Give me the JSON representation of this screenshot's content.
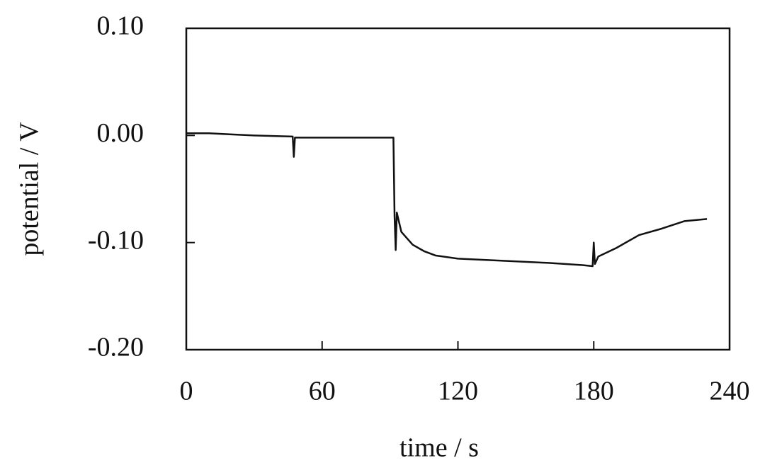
{
  "chart_data": {
    "type": "line",
    "x_label": "time / s",
    "y_label": "potential / V",
    "xlim": [
      0,
      240
    ],
    "xticks": [
      0,
      60,
      120,
      180,
      240
    ],
    "ylim": [
      -0.2,
      0.1
    ],
    "yticks": [
      {
        "value": -0.2,
        "label": "-0.20"
      },
      {
        "value": -0.1,
        "label": "-0.10"
      },
      {
        "value": 0,
        "label": "0.00"
      },
      {
        "value": 0.1,
        "label": "0.10"
      }
    ],
    "series": [
      {
        "color": "#111111",
        "x": [
          0,
          10,
          20,
          30,
          47,
          47.5,
          48,
          60,
          80,
          91.5,
          92,
          92.5,
          93,
          95,
          100,
          105,
          110,
          120,
          140,
          160,
          175,
          179.5,
          180,
          180.5,
          182,
          190,
          200,
          210,
          220,
          230
        ],
        "values": [
          0.002,
          0.002,
          0.001,
          0.0,
          -0.001,
          -0.02,
          -0.002,
          -0.002,
          -0.002,
          -0.002,
          -0.075,
          -0.107,
          -0.072,
          -0.09,
          -0.102,
          -0.108,
          -0.112,
          -0.115,
          -0.117,
          -0.119,
          -0.121,
          -0.122,
          -0.1,
          -0.12,
          -0.113,
          -0.105,
          -0.093,
          -0.087,
          -0.08,
          -0.078
        ]
      }
    ]
  }
}
